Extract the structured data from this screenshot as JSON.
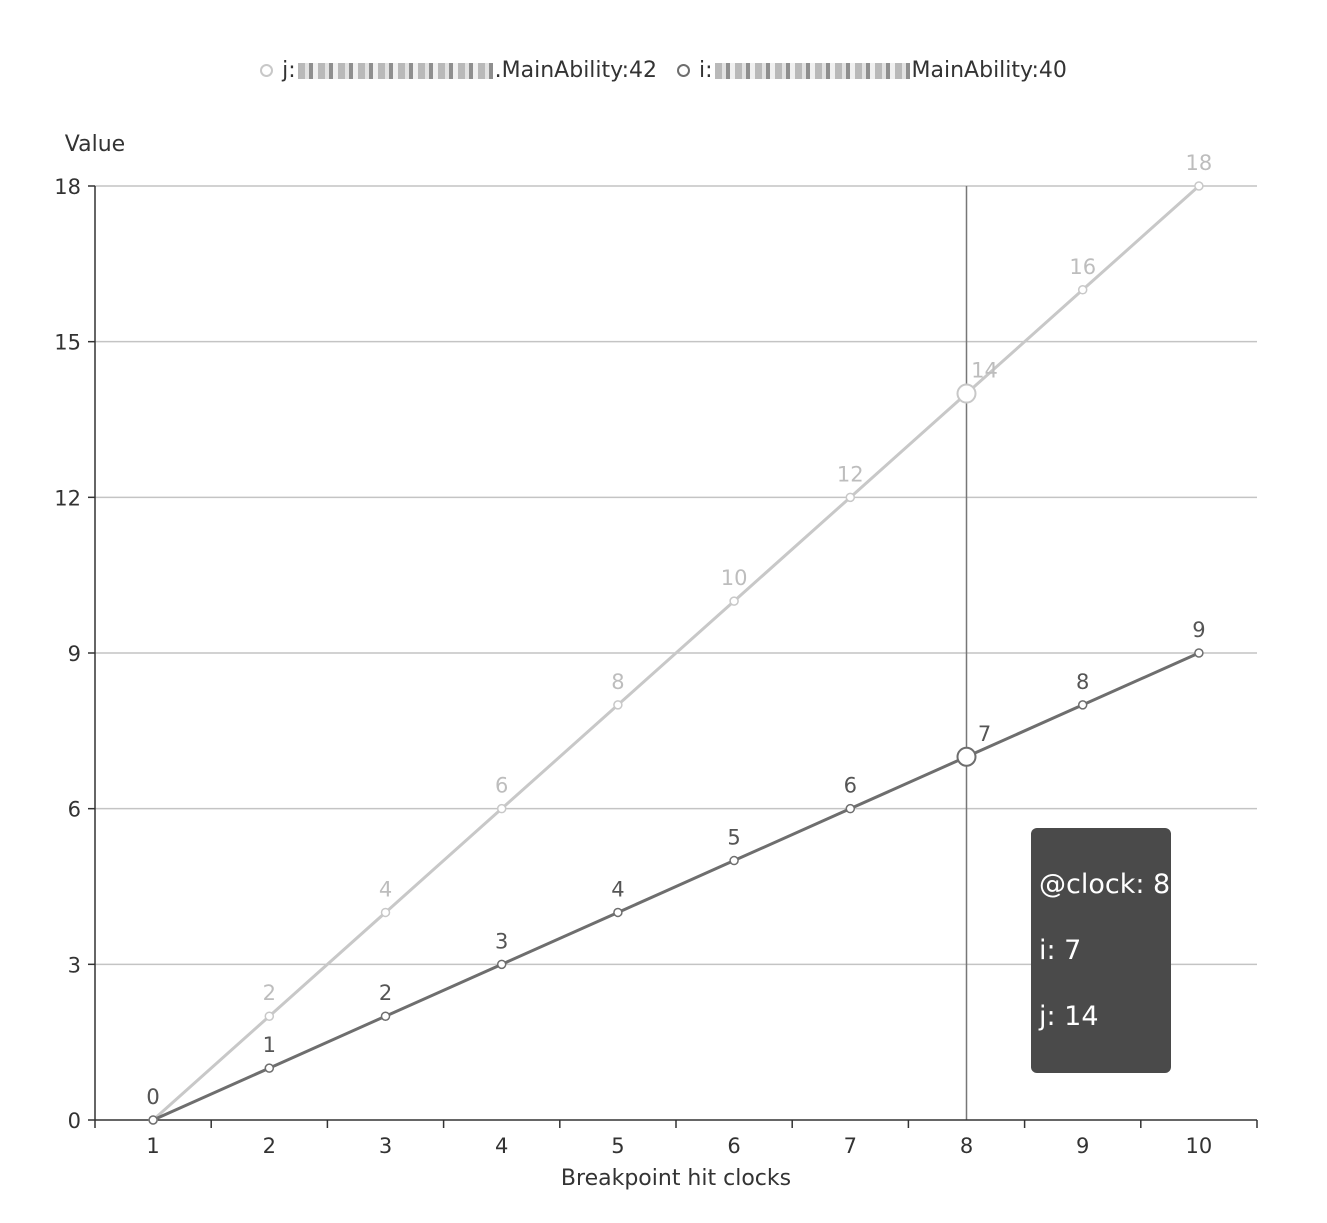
{
  "legend": [
    {
      "prefix": "j:",
      "suffix": ".MainAbility:42",
      "color": "#c8c8c8"
    },
    {
      "prefix": "i:",
      "suffix": "MainAbility:40",
      "color": "#6e6e6e"
    }
  ],
  "tooltip": {
    "header": "@clock: 8",
    "lines": [
      "i: 7",
      "j: 14"
    ]
  },
  "chart_data": {
    "type": "line",
    "title": "",
    "xlabel": "Breakpoint hit clocks",
    "ylabel": "Value",
    "categories": [
      "1",
      "2",
      "3",
      "4",
      "5",
      "6",
      "7",
      "8",
      "9",
      "10"
    ],
    "ylim": [
      0,
      18
    ],
    "yticks": [
      "0",
      "3",
      "6",
      "9",
      "12",
      "15",
      "18"
    ],
    "grid": true,
    "legend_position": "top-center",
    "highlight_category": "8",
    "series": [
      {
        "name": "j",
        "color": "#c8c8c8",
        "values": [
          0,
          2,
          4,
          6,
          8,
          10,
          12,
          14,
          16,
          18
        ]
      },
      {
        "name": "i",
        "color": "#6e6e6e",
        "values": [
          0,
          1,
          2,
          3,
          4,
          5,
          6,
          7,
          8,
          9
        ]
      }
    ]
  }
}
